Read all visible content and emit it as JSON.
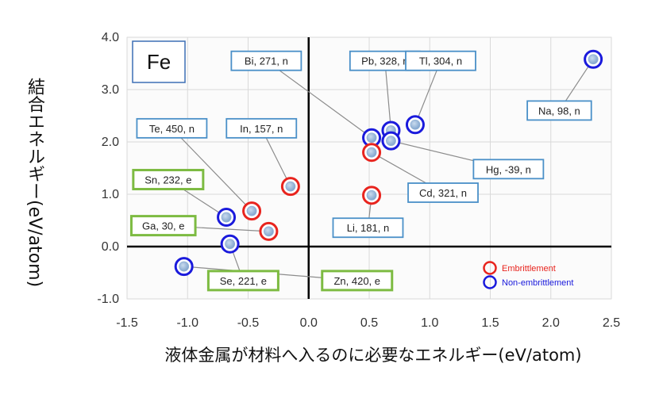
{
  "chart_data": {
    "type": "scatter",
    "title": "Fe",
    "xlabel": "液体金属が材料へ入るのに必要なエネルギー(eV/atom)",
    "ylabel": "結合エネルギー(eV/atom)",
    "xlim": [
      -1.5,
      2.5
    ],
    "ylim": [
      -1.0,
      4.0
    ],
    "xticks": [
      "-1.5",
      "-1.0",
      "-0.5",
      "0.0",
      "0.5",
      "1.0",
      "1.5",
      "2.0",
      "2.5"
    ],
    "yticks": [
      "-1.0",
      "0.0",
      "1.0",
      "2.0",
      "3.0",
      "4.0"
    ],
    "grid": true,
    "legend": {
      "position": "bottom-right",
      "items": [
        {
          "label": "Embrittlement",
          "color": "#e8241e"
        },
        {
          "label": "Non-embrittlement",
          "color": "#1a1adc"
        }
      ]
    },
    "colors": {
      "embrittlement": "#e8241e",
      "non_embrittlement": "#1a1adc",
      "e_box": "#7dbb42",
      "n_box": "#4a90c8",
      "point_fill": "#8fb0d6"
    },
    "points": [
      {
        "label": "Bi, 271, n",
        "x": 0.52,
        "y": 2.08,
        "class": "n",
        "box": [
          -0.35,
          3.55
        ]
      },
      {
        "label": "Pb, 328, n",
        "x": 0.68,
        "y": 2.22,
        "class": "n",
        "box": [
          0.63,
          3.55
        ]
      },
      {
        "label": "Tl, 304, n",
        "x": 0.88,
        "y": 2.33,
        "class": "n",
        "box": [
          1.09,
          3.55
        ]
      },
      {
        "label": "Na, 98, n",
        "x": 2.35,
        "y": 3.58,
        "class": "n",
        "box": [
          2.07,
          2.6
        ]
      },
      {
        "label": "Hg, -39, n",
        "x": 0.68,
        "y": 2.02,
        "class": "n",
        "box": [
          1.65,
          1.48
        ]
      },
      {
        "label": "Cd, 321, n",
        "x": 0.52,
        "y": 1.8,
        "class": "e",
        "box": [
          1.11,
          1.03
        ]
      },
      {
        "label": "Li, 181, n",
        "x": 0.52,
        "y": 0.98,
        "class": "e",
        "box": [
          0.49,
          0.36
        ]
      },
      {
        "label": "Te, 450, n",
        "x": -0.47,
        "y": 0.68,
        "class": "e",
        "box": [
          -1.13,
          2.26
        ]
      },
      {
        "label": "In, 157, n",
        "x": -0.15,
        "y": 1.15,
        "class": "e",
        "box": [
          -0.39,
          2.26
        ]
      },
      {
        "label": "Sn, 232, e",
        "x": -0.68,
        "y": 0.56,
        "class": "n",
        "box": [
          -1.16,
          1.28
        ]
      },
      {
        "label": "Ga, 30, e",
        "x": -0.33,
        "y": 0.29,
        "class": "e",
        "box": [
          -1.2,
          0.4
        ]
      },
      {
        "label": "Se, 221, e",
        "x": -0.65,
        "y": 0.05,
        "class": "n",
        "box": [
          -0.54,
          -0.65
        ]
      },
      {
        "label": "Zn, 420, e",
        "x": -1.03,
        "y": -0.38,
        "class": "n",
        "box": [
          0.4,
          -0.65
        ]
      }
    ]
  }
}
